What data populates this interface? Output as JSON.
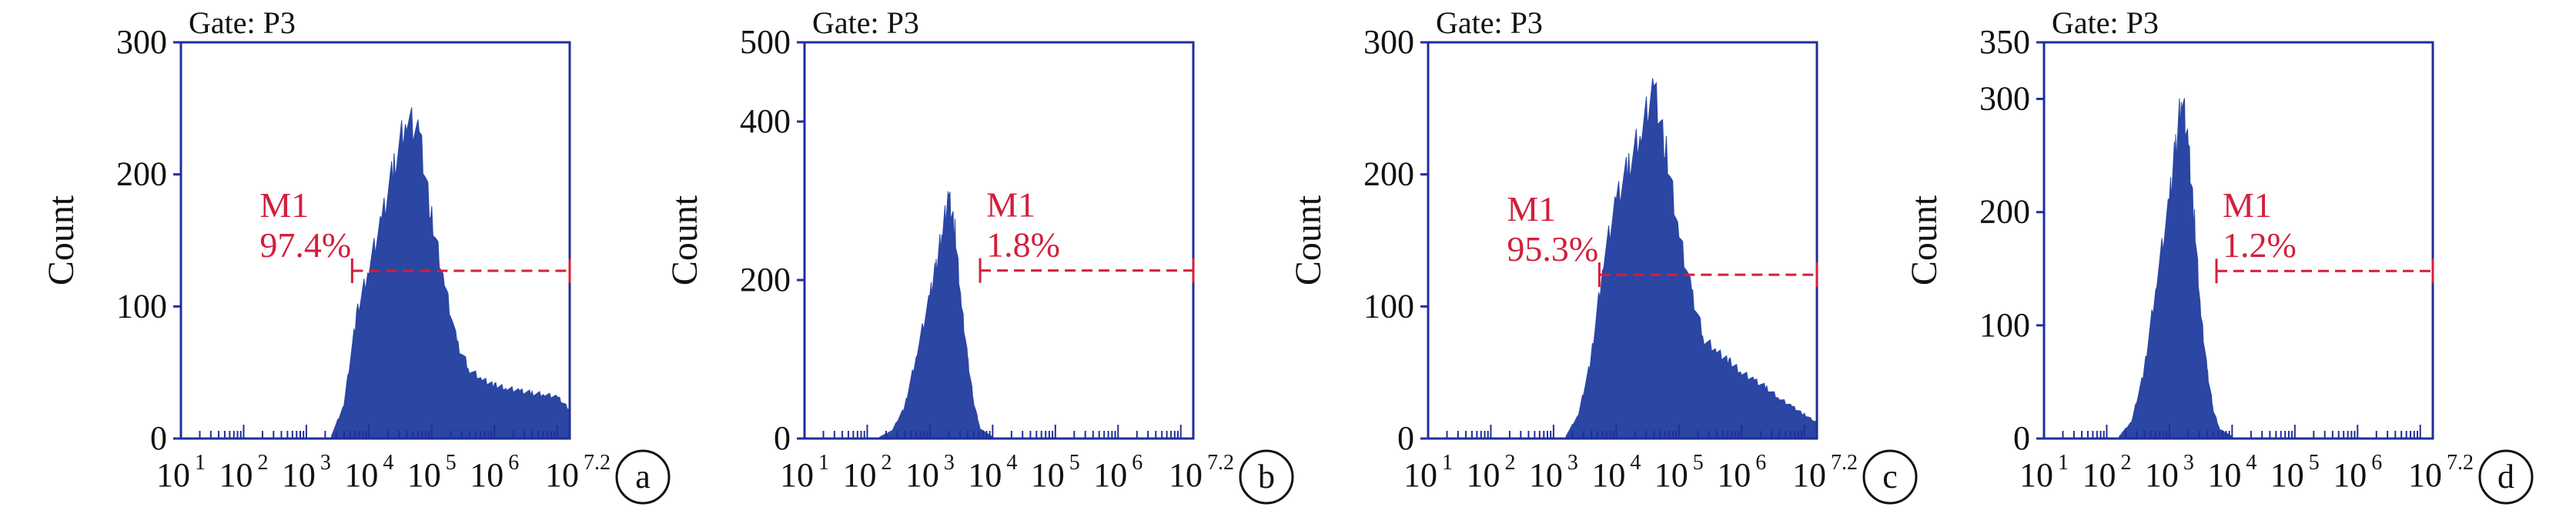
{
  "panels": [
    {
      "gate": "Gate: P3",
      "ylabel": "Count",
      "yticks": [
        "0",
        "100",
        "200",
        "300"
      ],
      "xticks": [
        "10",
        "10",
        "10",
        "10",
        "10",
        "10",
        "10"
      ],
      "xexps": [
        "1",
        "2",
        "3",
        "4",
        "5",
        "6",
        "7.2"
      ],
      "marker": {
        "name": "M1",
        "percent": "97.4%"
      },
      "letter": "a"
    },
    {
      "gate": "Gate: P3",
      "ylabel": "Count",
      "yticks": [
        "0",
        "200",
        "400",
        "500"
      ],
      "xticks": [
        "10",
        "10",
        "10",
        "10",
        "10",
        "10",
        "10"
      ],
      "xexps": [
        "1",
        "2",
        "3",
        "4",
        "5",
        "6",
        "7.2"
      ],
      "marker": {
        "name": "M1",
        "percent": "1.8%"
      },
      "letter": "b"
    },
    {
      "gate": "Gate: P3",
      "ylabel": "Count",
      "yticks": [
        "0",
        "100",
        "200",
        "300"
      ],
      "xticks": [
        "10",
        "10",
        "10",
        "10",
        "10",
        "10",
        "10"
      ],
      "xexps": [
        "1",
        "2",
        "3",
        "4",
        "5",
        "6",
        "7.2"
      ],
      "marker": {
        "name": "M1",
        "percent": "95.3%"
      },
      "letter": "c"
    },
    {
      "gate": "Gate: P3",
      "ylabel": "Count",
      "yticks": [
        "0",
        "100",
        "200",
        "300",
        "350"
      ],
      "xticks": [
        "10",
        "10",
        "10",
        "10",
        "10",
        "10",
        "10"
      ],
      "xexps": [
        "1",
        "2",
        "3",
        "4",
        "5",
        "6",
        "7.2"
      ],
      "marker": {
        "name": "M1",
        "percent": "1.2%"
      },
      "letter": "d"
    }
  ],
  "colors": {
    "histogram": "#2b46a3",
    "axis": "#1f2f9a",
    "marker": "#d21f3c",
    "text": "#111111"
  },
  "chart_data": [
    {
      "type": "area",
      "xscale": "log",
      "xlim": [
        1,
        7.2
      ],
      "ylim": [
        0,
        300
      ],
      "yticks": [
        0,
        100,
        200,
        300
      ],
      "marker": {
        "label": "M1",
        "percent": 97.4,
        "x_start": 3.73,
        "x_end": 7.2,
        "y": 127
      },
      "x": [
        3.4,
        3.6,
        3.8,
        4.0,
        4.2,
        4.4,
        4.6,
        4.8,
        5.0,
        5.2,
        5.4,
        5.6,
        5.8,
        6.0,
        6.2,
        6.4,
        6.6,
        6.8,
        7.0,
        7.2
      ],
      "values": [
        2,
        25,
        92,
        130,
        165,
        205,
        240,
        228,
        165,
        118,
        72,
        52,
        44,
        40,
        38,
        36,
        34,
        33,
        31,
        22
      ]
    },
    {
      "type": "area",
      "xscale": "log",
      "xlim": [
        1,
        7.2
      ],
      "ylim": [
        0,
        500
      ],
      "yticks": [
        0,
        200,
        400,
        500
      ],
      "marker": {
        "label": "M1",
        "percent": 1.8,
        "x_start": 3.8,
        "x_end": 7.2,
        "y": 212
      },
      "x": [
        2.2,
        2.4,
        2.6,
        2.8,
        3.0,
        3.1,
        3.2,
        3.3,
        3.4,
        3.5,
        3.6,
        3.7,
        3.8,
        4.0
      ],
      "values": [
        2,
        10,
        40,
        110,
        180,
        215,
        260,
        300,
        260,
        170,
        100,
        45,
        12,
        2
      ]
    },
    {
      "type": "area",
      "xscale": "log",
      "xlim": [
        1,
        7.2
      ],
      "ylim": [
        0,
        300
      ],
      "yticks": [
        0,
        100,
        200,
        300
      ],
      "marker": {
        "label": "M1",
        "percent": 95.3,
        "x_start": 3.73,
        "x_end": 7.2,
        "y": 124
      },
      "x": [
        3.2,
        3.4,
        3.6,
        3.8,
        4.0,
        4.2,
        4.4,
        4.6,
        4.8,
        5.0,
        5.2,
        5.4,
        5.6,
        5.8,
        6.0,
        6.2,
        6.4,
        6.6,
        6.8,
        7.0,
        7.2
      ],
      "values": [
        2,
        18,
        60,
        135,
        180,
        205,
        230,
        262,
        215,
        155,
        110,
        75,
        65,
        58,
        50,
        44,
        38,
        30,
        24,
        18,
        12
      ]
    },
    {
      "type": "area",
      "xscale": "log",
      "xlim": [
        1,
        7.2
      ],
      "ylim": [
        0,
        350
      ],
      "yticks": [
        0,
        100,
        200,
        300,
        350
      ],
      "marker": {
        "label": "M1",
        "percent": 1.2,
        "x_start": 3.75,
        "x_end": 7.2,
        "y": 148
      },
      "x": [
        2.2,
        2.4,
        2.6,
        2.8,
        3.0,
        3.1,
        3.2,
        3.3,
        3.4,
        3.5,
        3.6,
        3.7,
        3.8,
        4.0
      ],
      "values": [
        2,
        15,
        60,
        140,
        210,
        255,
        300,
        255,
        190,
        110,
        60,
        25,
        8,
        2
      ]
    }
  ]
}
